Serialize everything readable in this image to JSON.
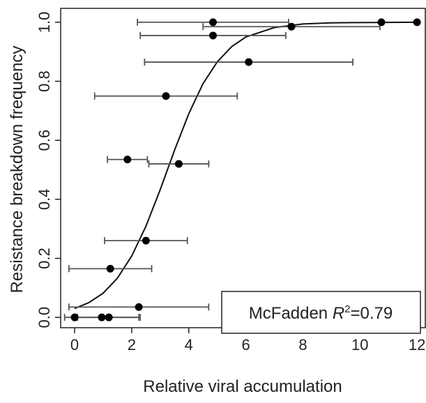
{
  "chart_data": {
    "type": "scatter",
    "xlabel": "Relative viral accumulation",
    "ylabel": "Resistance breakdown frequency",
    "x": [
      0,
      0.95,
      1.2,
      2.25,
      1.25,
      2.5,
      1.85,
      3.65,
      3.2,
      6.1,
      4.85,
      4.85,
      7.6,
      10.75,
      12.0
    ],
    "y": [
      0.0,
      0.0,
      0.0,
      0.035,
      0.165,
      0.26,
      0.535,
      0.52,
      0.75,
      0.865,
      0.955,
      1.0,
      0.985,
      1.0,
      1.0
    ],
    "xerr": [
      0,
      1.3,
      1.1,
      2.45,
      1.45,
      1.45,
      0.7,
      1.05,
      2.5,
      3.65,
      2.55,
      2.65,
      3.1,
      0,
      0
    ],
    "color": "#000000",
    "curve": {
      "x": [
        0,
        0.5,
        1,
        1.5,
        2,
        2.5,
        3,
        3.5,
        4,
        4.5,
        5,
        5.5,
        6,
        7,
        8,
        9,
        10,
        12
      ],
      "y": [
        0.03,
        0.05,
        0.082,
        0.133,
        0.208,
        0.309,
        0.433,
        0.566,
        0.69,
        0.792,
        0.866,
        0.917,
        0.95,
        0.982,
        0.994,
        0.998,
        0.999,
        1.0
      ]
    },
    "annotation": {
      "prefix": "McFadden ",
      "symbol": "R",
      "superscript": "2",
      "suffix": "=0.79"
    },
    "xlim": [
      -0.49,
      12.29
    ],
    "ylim": [
      -0.035,
      1.047
    ],
    "xticks": [
      0,
      2,
      4,
      6,
      8,
      10,
      12
    ],
    "yticks": [
      {
        "value": 0,
        "label": "0.0"
      },
      0.2,
      0.4,
      0.6,
      0.8,
      {
        "value": 1,
        "label": "1.0"
      }
    ]
  }
}
